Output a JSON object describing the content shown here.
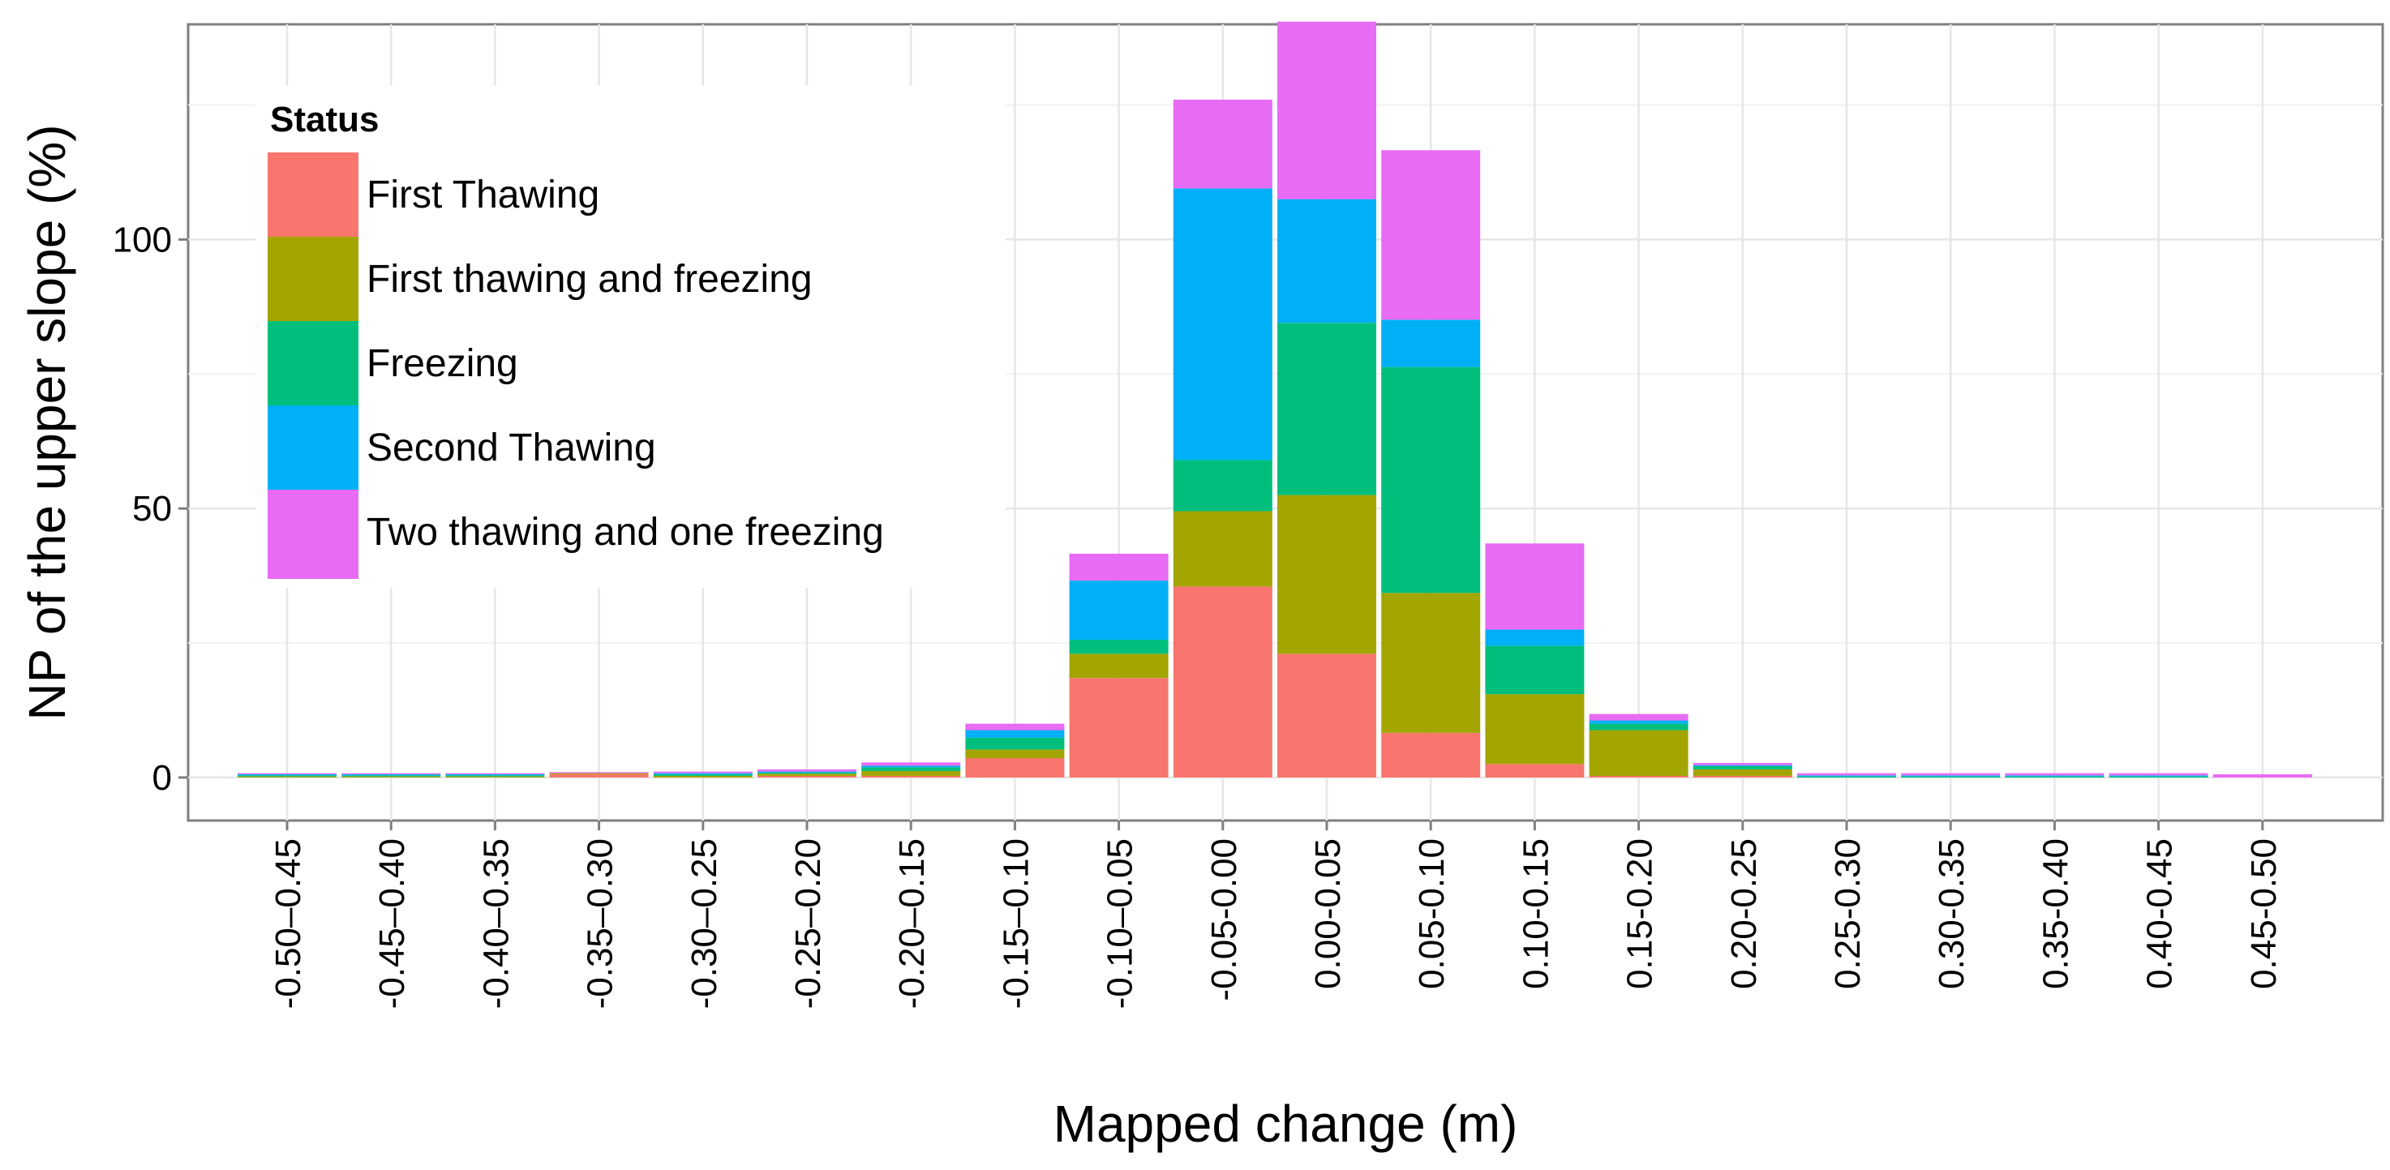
{
  "chart_data": {
    "type": "bar",
    "stacked": true,
    "title": "",
    "xlabel": "Mapped change (m)",
    "ylabel": "NP of the upper slope (%)",
    "ylim": [
      -8,
      140
    ],
    "yticks": [
      0,
      50,
      100
    ],
    "grid": true,
    "legend": {
      "title": "Status",
      "position": "top-left"
    },
    "categories": [
      "-0.50–0.45",
      "-0.45–0.40",
      "-0.40–0.35",
      "-0.35–0.30",
      "-0.30–0.25",
      "-0.25–0.20",
      "-0.20–0.15",
      "-0.15–0.10",
      "-0.10–0.05",
      "-0.05-0.00",
      "0.00-0.05",
      "0.05-0.10",
      "0.10-0.15",
      "0.15-0.20",
      "0.20-0.25",
      "0.25-0.30",
      "0.30-0.35",
      "0.35-0.40",
      "0.40-0.45",
      "0.45-0.50"
    ],
    "series": [
      {
        "name": "First Thawing",
        "color": "#F8766D",
        "values": [
          0,
          0,
          0,
          0.6,
          0,
          0.3,
          0.3,
          3.6,
          18.5,
          35.5,
          23,
          8.3,
          2.5,
          0.3,
          0.3,
          0,
          0,
          0,
          0,
          0
        ]
      },
      {
        "name": "First thawing and freezing",
        "color": "#A3A500",
        "values": [
          0.2,
          0.2,
          0.2,
          0.2,
          0.3,
          0.4,
          0.9,
          1.6,
          4.5,
          14,
          29.5,
          26,
          13,
          8.5,
          1.2,
          0,
          0,
          0,
          0,
          0
        ]
      },
      {
        "name": "Freezing",
        "color": "#00BF7D",
        "values": [
          0.2,
          0.2,
          0.2,
          0,
          0.3,
          0.2,
          0.7,
          2.2,
          2.6,
          9.5,
          32,
          42,
          9,
          1.2,
          0.6,
          0.2,
          0.2,
          0.2,
          0.2,
          0
        ]
      },
      {
        "name": "Second Thawing",
        "color": "#00B0F6",
        "values": [
          0.2,
          0.2,
          0.2,
          0,
          0.2,
          0.2,
          0.3,
          1.4,
          11,
          50.5,
          23,
          8.8,
          3,
          0.6,
          0.2,
          0.2,
          0.2,
          0.2,
          0.2,
          0
        ]
      },
      {
        "name": "Two thawing and one freezing",
        "color": "#E76BF3",
        "values": [
          0.2,
          0.2,
          0.2,
          0.2,
          0.3,
          0.4,
          0.6,
          1.2,
          5,
          16.5,
          33,
          31.5,
          16,
          1.2,
          0.4,
          0.4,
          0.4,
          0.4,
          0.4,
          0.6
        ]
      }
    ]
  }
}
